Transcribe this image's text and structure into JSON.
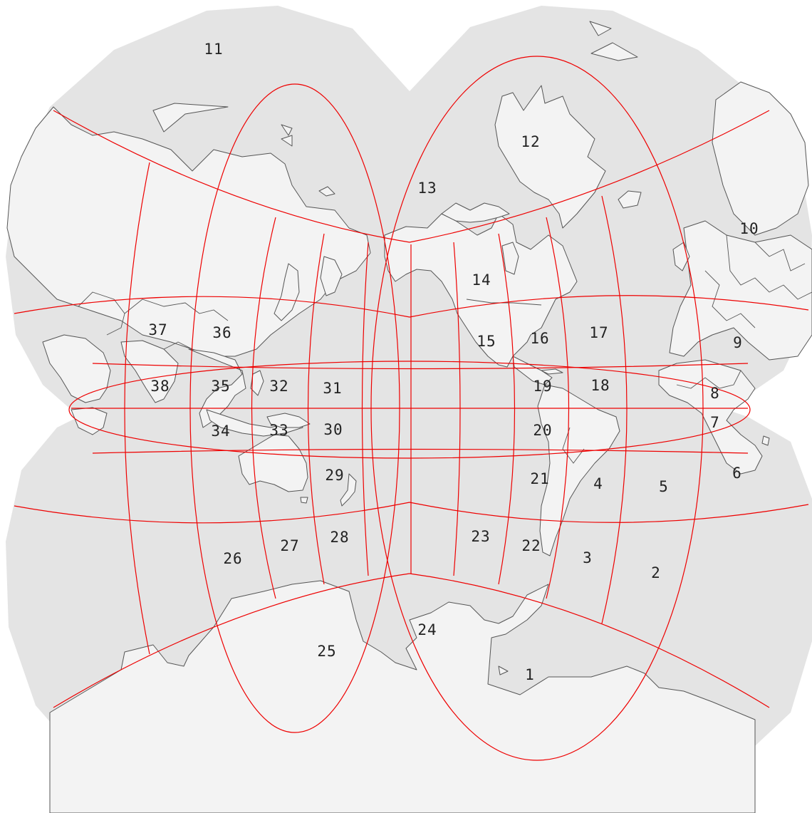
{
  "map": {
    "projection": "butterfly",
    "colors": {
      "ocean": "#e4e4e4",
      "land": "#f3f3f3",
      "coast": "#555555",
      "grid": "#ee0000"
    },
    "zones": [
      "1",
      "2",
      "3",
      "4",
      "5",
      "6",
      "7",
      "8",
      "9",
      "10",
      "11",
      "12",
      "13",
      "14",
      "15",
      "16",
      "17",
      "18",
      "19",
      "20",
      "21",
      "22",
      "23",
      "24",
      "25",
      "26",
      "27",
      "28",
      "29",
      "30",
      "31",
      "32",
      "33",
      "34",
      "35",
      "36",
      "37",
      "38"
    ]
  }
}
